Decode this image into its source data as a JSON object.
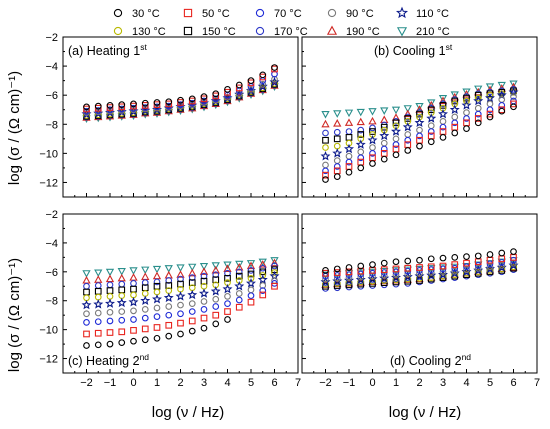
{
  "figure": {
    "ylabel": "log (σ / (Ω cm)⁻¹)",
    "xlabel": "log (ν / Hz)",
    "legend": {
      "placement": "top",
      "entries": [
        {
          "label": "30 °C",
          "marker": "circle",
          "color": "#000000"
        },
        {
          "label": "50 °C",
          "marker": "square",
          "color": "#e8251f"
        },
        {
          "label": "70 °C",
          "marker": "circle",
          "color": "#1f2bd6"
        },
        {
          "label": "90 °C",
          "marker": "circle",
          "color": "#7a7a7a"
        },
        {
          "label": "110 °C",
          "marker": "star",
          "color": "#0b1a8a"
        },
        {
          "label": "130 °C",
          "marker": "circle",
          "color": "#b9b900"
        },
        {
          "label": "150 °C",
          "marker": "square",
          "color": "#000000"
        },
        {
          "label": "170 °C",
          "marker": "circle",
          "color": "#2d38c8"
        },
        {
          "label": "190 °C",
          "marker": "triangle-up",
          "color": "#cf2a26"
        },
        {
          "label": "210 °C",
          "marker": "triangle-down",
          "color": "#2a8f8c"
        }
      ]
    }
  },
  "chart_data": [
    {
      "type": "scatter",
      "panel": "a",
      "title": "(a) Heating 1",
      "title_sup": "st",
      "xlim": [
        -3,
        7
      ],
      "ylim": [
        -13,
        -2
      ],
      "x": [
        -2,
        -1.5,
        -1,
        -0.5,
        0,
        0.5,
        1,
        1.5,
        2,
        2.5,
        3,
        3.5,
        4,
        4.5,
        5,
        5.5,
        6
      ],
      "series": [
        {
          "name": "30 °C",
          "values": [
            -6.8,
            -6.75,
            -6.7,
            -6.65,
            -6.6,
            -6.55,
            -6.5,
            -6.45,
            -6.35,
            -6.25,
            -6.1,
            -5.9,
            -5.6,
            -5.3,
            -5.0,
            -4.6,
            -4.1
          ]
        },
        {
          "name": "50 °C",
          "values": [
            -6.95,
            -6.9,
            -6.85,
            -6.8,
            -6.75,
            -6.7,
            -6.65,
            -6.6,
            -6.5,
            -6.4,
            -6.25,
            -6.05,
            -5.8,
            -5.5,
            -5.15,
            -4.75,
            -4.2
          ]
        },
        {
          "name": "70 °C",
          "values": [
            -7.1,
            -7.05,
            -7.0,
            -6.95,
            -6.9,
            -6.85,
            -6.8,
            -6.75,
            -6.65,
            -6.55,
            -6.4,
            -6.25,
            -6.0,
            -5.7,
            -5.4,
            -5.0,
            -4.55
          ]
        },
        {
          "name": "90 °C",
          "values": [
            -7.2,
            -7.15,
            -7.1,
            -7.05,
            -7.0,
            -6.95,
            -6.9,
            -6.85,
            -6.75,
            -6.65,
            -6.5,
            -6.35,
            -6.15,
            -5.9,
            -5.6,
            -5.25,
            -4.9
          ]
        },
        {
          "name": "110 °C",
          "values": [
            -7.3,
            -7.25,
            -7.2,
            -7.15,
            -7.1,
            -7.05,
            -7.0,
            -6.9,
            -6.8,
            -6.7,
            -6.55,
            -6.4,
            -6.2,
            -5.95,
            -5.7,
            -5.4,
            -5.1
          ]
        },
        {
          "name": "130 °C",
          "values": [
            -7.4,
            -7.35,
            -7.3,
            -7.25,
            -7.2,
            -7.1,
            -7.05,
            -6.95,
            -6.85,
            -6.75,
            -6.6,
            -6.45,
            -6.25,
            -6.0,
            -5.75,
            -5.5,
            -5.2
          ]
        },
        {
          "name": "150 °C",
          "values": [
            -7.45,
            -7.4,
            -7.35,
            -7.3,
            -7.25,
            -7.15,
            -7.1,
            -7.0,
            -6.9,
            -6.8,
            -6.65,
            -6.5,
            -6.3,
            -6.05,
            -5.8,
            -5.55,
            -5.25
          ]
        },
        {
          "name": "170 °C",
          "values": [
            -7.5,
            -7.45,
            -7.4,
            -7.35,
            -7.3,
            -7.2,
            -7.15,
            -7.05,
            -6.95,
            -6.85,
            -6.7,
            -6.55,
            -6.35,
            -6.1,
            -5.85,
            -5.6,
            -5.3
          ]
        },
        {
          "name": "190 °C",
          "values": [
            -7.55,
            -7.5,
            -7.45,
            -7.4,
            -7.35,
            -7.25,
            -7.2,
            -7.1,
            -7.0,
            -6.9,
            -6.75,
            -6.6,
            -6.4,
            -6.15,
            -5.9,
            -5.65,
            -5.35
          ]
        },
        {
          "name": "210 °C",
          "values": [
            -7.6,
            -7.55,
            -7.5,
            -7.45,
            -7.4,
            -7.3,
            -7.25,
            -7.15,
            -7.05,
            -6.95,
            -6.8,
            -6.65,
            -6.45,
            -6.2,
            -5.95,
            -5.7,
            -5.4
          ]
        }
      ]
    },
    {
      "type": "scatter",
      "panel": "b",
      "title": "(b) Cooling 1",
      "title_sup": "st",
      "xlim": [
        -3,
        7
      ],
      "ylim": [
        -13,
        -2
      ],
      "x": [
        -2,
        -1.5,
        -1,
        -0.5,
        0,
        0.5,
        1,
        1.5,
        2,
        2.5,
        3,
        3.5,
        4,
        4.5,
        5,
        5.5,
        6
      ],
      "series": [
        {
          "name": "30 °C",
          "values": [
            -11.8,
            -11.6,
            -11.3,
            -11.0,
            -10.7,
            -10.4,
            -10.1,
            -9.8,
            -9.5,
            -9.2,
            -8.9,
            -8.6,
            -8.3,
            -7.9,
            -7.5,
            -7.1,
            -6.8
          ]
        },
        {
          "name": "50 °C",
          "values": [
            -11.5,
            -11.2,
            -10.9,
            -10.6,
            -10.3,
            -10.0,
            -9.7,
            -9.4,
            -9.1,
            -8.8,
            -8.5,
            -8.2,
            -7.9,
            -7.6,
            -7.3,
            -7.0,
            -6.6
          ]
        },
        {
          "name": "70 °C",
          "values": [
            -11.2,
            -10.9,
            -10.6,
            -10.3,
            -10.0,
            -9.7,
            -9.4,
            -9.1,
            -8.8,
            -8.5,
            -8.2,
            -7.9,
            -7.6,
            -7.3,
            -7.0,
            -6.7,
            -6.4
          ]
        },
        {
          "name": "90 °C",
          "values": [
            -10.8,
            -10.5,
            -10.2,
            -9.9,
            -9.6,
            -9.3,
            -9.0,
            -8.7,
            -8.4,
            -8.1,
            -7.8,
            -7.5,
            -7.2,
            -6.9,
            -6.6,
            -6.3,
            -6.1
          ]
        },
        {
          "name": "110 °C",
          "values": [
            -10.2,
            -10.0,
            -9.7,
            -9.4,
            -9.1,
            -8.8,
            -8.5,
            -8.2,
            -7.9,
            -7.6,
            -7.3,
            -7.0,
            -6.7,
            -6.4,
            -6.2,
            -6.0,
            -5.8
          ]
        },
        {
          "name": "130 °C",
          "values": [
            -9.6,
            -9.5,
            -9.3,
            -9.0,
            -8.7,
            -8.4,
            -8.1,
            -7.8,
            -7.5,
            -7.2,
            -6.9,
            -6.6,
            -6.4,
            -6.2,
            -6.0,
            -5.9,
            -5.8
          ]
        },
        {
          "name": "150 °C",
          "values": [
            -9.1,
            -9.0,
            -8.9,
            -8.7,
            -8.5,
            -8.2,
            -7.9,
            -7.6,
            -7.3,
            -7.0,
            -6.7,
            -6.4,
            -6.2,
            -6.0,
            -5.9,
            -5.8,
            -5.7
          ]
        },
        {
          "name": "170 °C",
          "values": [
            -8.6,
            -8.55,
            -8.5,
            -8.4,
            -8.25,
            -8.05,
            -7.8,
            -7.5,
            -7.2,
            -6.9,
            -6.6,
            -6.3,
            -6.1,
            -5.9,
            -5.8,
            -5.7,
            -5.6
          ]
        },
        {
          "name": "190 °C",
          "values": [
            -8.0,
            -7.95,
            -7.9,
            -7.85,
            -7.8,
            -7.7,
            -7.55,
            -7.3,
            -7.0,
            -6.7,
            -6.4,
            -6.15,
            -5.95,
            -5.8,
            -5.65,
            -5.55,
            -5.45
          ]
        },
        {
          "name": "210 °C",
          "values": [
            -7.3,
            -7.25,
            -7.2,
            -7.15,
            -7.1,
            -7.05,
            -7.0,
            -6.9,
            -6.75,
            -6.5,
            -6.2,
            -5.95,
            -5.75,
            -5.55,
            -5.4,
            -5.3,
            -5.2
          ]
        }
      ]
    },
    {
      "type": "scatter",
      "panel": "c",
      "title": "(c) Heating 2",
      "title_sup": "nd",
      "xlim": [
        -3,
        7
      ],
      "ylim": [
        -13,
        -2
      ],
      "x": [
        -2,
        -1.5,
        -1,
        -0.5,
        0,
        0.5,
        1,
        1.5,
        2,
        2.5,
        3,
        3.5,
        4,
        4.5,
        5,
        5.5,
        6
      ],
      "series": [
        {
          "name": "30 °C",
          "values": [
            -11.1,
            -11.05,
            -11.0,
            -10.9,
            -10.8,
            -10.7,
            -10.6,
            -10.45,
            -10.3,
            -10.1,
            -9.9,
            -9.6,
            -9.3,
            null,
            null,
            null,
            null
          ]
        },
        {
          "name": "50 °C",
          "values": [
            -10.3,
            -10.25,
            -10.2,
            -10.15,
            -10.05,
            -9.95,
            -9.85,
            -9.7,
            -9.55,
            -9.4,
            -9.2,
            -9.0,
            -8.75,
            -8.45,
            -8.1,
            -7.6,
            -7.0
          ]
        },
        {
          "name": "70 °C",
          "values": [
            -9.5,
            -9.45,
            -9.4,
            -9.35,
            -9.3,
            -9.2,
            -9.1,
            -9.0,
            -8.9,
            -8.75,
            -8.6,
            -8.4,
            -8.2,
            -7.95,
            -7.65,
            -7.3,
            -6.8
          ]
        },
        {
          "name": "90 °C",
          "values": [
            -8.9,
            -8.85,
            -8.8,
            -8.75,
            -8.7,
            -8.6,
            -8.5,
            -8.4,
            -8.3,
            -8.2,
            -8.05,
            -7.9,
            -7.7,
            -7.5,
            -7.25,
            -6.95,
            -6.6
          ]
        },
        {
          "name": "110 °C",
          "values": [
            -8.3,
            -8.25,
            -8.2,
            -8.15,
            -8.1,
            -8.0,
            -7.9,
            -7.8,
            -7.7,
            -7.6,
            -7.5,
            -7.35,
            -7.2,
            -7.0,
            -6.8,
            -6.55,
            -6.3
          ]
        },
        {
          "name": "130 °C",
          "values": [
            -7.8,
            -7.75,
            -7.7,
            -7.65,
            -7.6,
            -7.5,
            -7.4,
            -7.3,
            -7.2,
            -7.1,
            -7.0,
            -6.9,
            -6.75,
            -6.6,
            -6.45,
            -6.25,
            -6.05
          ]
        },
        {
          "name": "150 °C",
          "values": [
            -7.4,
            -7.35,
            -7.3,
            -7.25,
            -7.2,
            -7.1,
            -7.0,
            -6.95,
            -6.85,
            -6.75,
            -6.65,
            -6.55,
            -6.45,
            -6.3,
            -6.15,
            -6.0,
            -5.85
          ]
        },
        {
          "name": "170 °C",
          "values": [
            -7.0,
            -6.95,
            -6.9,
            -6.85,
            -6.8,
            -6.75,
            -6.7,
            -6.6,
            -6.5,
            -6.4,
            -6.3,
            -6.2,
            -6.1,
            -6.0,
            -5.9,
            -5.75,
            -5.6
          ]
        },
        {
          "name": "190 °C",
          "values": [
            -6.6,
            -6.55,
            -6.5,
            -6.45,
            -6.4,
            -6.35,
            -6.3,
            -6.25,
            -6.2,
            -6.1,
            -6.0,
            -5.9,
            -5.8,
            -5.7,
            -5.6,
            -5.5,
            -5.4
          ]
        },
        {
          "name": "210 °C",
          "values": [
            -6.1,
            -6.05,
            -6.0,
            -5.95,
            -5.9,
            -5.85,
            -5.8,
            -5.75,
            -5.7,
            -5.65,
            -5.6,
            -5.55,
            -5.5,
            -5.45,
            -5.4,
            -5.3,
            -5.2
          ]
        }
      ]
    },
    {
      "type": "scatter",
      "panel": "d",
      "title": "(d) Cooling 2",
      "title_sup": "nd",
      "xlim": [
        -3,
        7
      ],
      "ylim": [
        -13,
        -2
      ],
      "x": [
        -2,
        -1.5,
        -1,
        -0.5,
        0,
        0.5,
        1,
        1.5,
        2,
        2.5,
        3,
        3.5,
        4,
        4.5,
        5,
        5.5,
        6
      ],
      "series": [
        {
          "name": "30 °C",
          "values": [
            -5.9,
            -5.8,
            -5.7,
            -5.6,
            -5.5,
            -5.4,
            -5.3,
            -5.25,
            -5.2,
            -5.1,
            -5.05,
            -5.0,
            -4.95,
            -4.9,
            -4.8,
            -4.7,
            -4.6
          ]
        },
        {
          "name": "50 °C",
          "values": [
            -6.1,
            -6.05,
            -6.0,
            -5.95,
            -5.9,
            -5.85,
            -5.8,
            -5.75,
            -5.7,
            -5.65,
            -5.6,
            -5.5,
            -5.4,
            -5.3,
            -5.2,
            -5.1,
            -5.0
          ]
        },
        {
          "name": "70 °C",
          "values": [
            -6.3,
            -6.25,
            -6.2,
            -6.15,
            -6.1,
            -6.05,
            -6.0,
            -5.95,
            -5.9,
            -5.85,
            -5.8,
            -5.75,
            -5.65,
            -5.55,
            -5.45,
            -5.35,
            -5.2
          ]
        },
        {
          "name": "90 °C",
          "values": [
            -6.5,
            -6.45,
            -6.4,
            -6.35,
            -6.3,
            -6.25,
            -6.2,
            -6.15,
            -6.1,
            -6.05,
            -6.0,
            -5.95,
            -5.85,
            -5.75,
            -5.65,
            -5.55,
            -5.4
          ]
        },
        {
          "name": "110 °C",
          "values": [
            -6.7,
            -6.65,
            -6.6,
            -6.55,
            -6.5,
            -6.45,
            -6.4,
            -6.35,
            -6.3,
            -6.25,
            -6.2,
            -6.1,
            -6.0,
            -5.9,
            -5.8,
            -5.7,
            -5.55
          ]
        },
        {
          "name": "130 °C",
          "values": [
            -6.85,
            -6.8,
            -6.75,
            -6.7,
            -6.65,
            -6.6,
            -6.55,
            -6.5,
            -6.45,
            -6.4,
            -6.3,
            -6.2,
            -6.1,
            -6.0,
            -5.9,
            -5.8,
            -5.65
          ]
        },
        {
          "name": "150 °C",
          "values": [
            -7.0,
            -6.95,
            -6.9,
            -6.85,
            -6.8,
            -6.75,
            -6.7,
            -6.65,
            -6.6,
            -6.5,
            -6.4,
            -6.3,
            -6.2,
            -6.1,
            -6.0,
            -5.9,
            -5.75
          ]
        },
        {
          "name": "170 °C",
          "values": [
            -7.15,
            -7.1,
            -7.05,
            -7.0,
            -6.95,
            -6.9,
            -6.85,
            -6.8,
            -6.7,
            -6.6,
            -6.5,
            -6.4,
            -6.3,
            -6.2,
            -6.1,
            -6.0,
            -5.85
          ]
        },
        {
          "name": "190 °C",
          "values": [
            -6.9,
            -6.85,
            -6.8,
            -6.75,
            -6.7,
            -6.65,
            -6.6,
            -6.55,
            -6.5,
            -6.4,
            -6.3,
            -6.2,
            -6.1,
            -6.0,
            -5.9,
            -5.8,
            -5.7
          ]
        },
        {
          "name": "210 °C",
          "values": [
            -6.2,
            -6.15,
            -6.1,
            -6.05,
            -6.0,
            -5.95,
            -5.9,
            -5.85,
            -5.8,
            -5.75,
            -5.7,
            -5.65,
            -5.6,
            -5.5,
            -5.4,
            -5.3,
            -5.2
          ]
        }
      ]
    }
  ]
}
